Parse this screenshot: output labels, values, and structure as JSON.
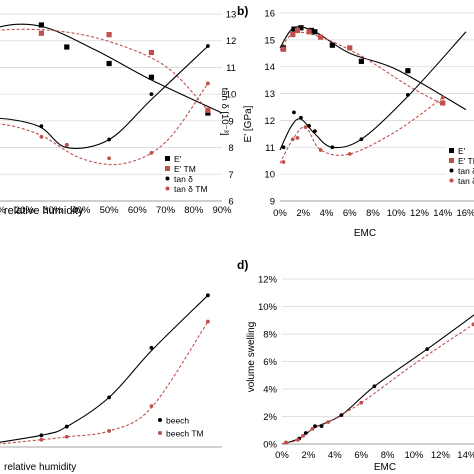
{
  "chart_data": [
    {
      "type": "scatter",
      "panel_label": "",
      "xlabel": "relative humidity",
      "ylabel": "",
      "y2label": "tan δ [10⁻³]",
      "x_ticks": [
        "0%",
        "10%",
        "20%",
        "30%",
        "40%",
        "50%",
        "60%",
        "70%",
        "80%",
        "90%"
      ],
      "y2_ticks": [
        "13",
        "12",
        "11",
        "10",
        "9",
        "8",
        "7",
        "6"
      ],
      "xlim": [
        0,
        0.9
      ],
      "ylim": [
        7,
        13.8
      ],
      "y2lim": [
        6,
        13
      ],
      "legend": [
        "E'",
        "E' TM",
        "tan δ",
        "tan δ TM"
      ],
      "legend_position": "right",
      "series": [
        {
          "name": "E'",
          "axis": "left",
          "marker": "square",
          "color": "#000000",
          "x": [
            0.26,
            0.35,
            0.5,
            0.65,
            0.85
          ],
          "y": [
            13.4,
            12.6,
            12.0,
            11.5,
            10.2
          ]
        },
        {
          "name": "E' TM",
          "axis": "left",
          "marker": "square",
          "color": "#c0504d",
          "x": [
            0.26,
            0.5,
            0.65,
            0.85
          ],
          "y": [
            13.1,
            13.05,
            12.4,
            10.3
          ]
        },
        {
          "name": "tan δ",
          "axis": "right",
          "marker": "dot",
          "color": "#000000",
          "x": [
            0.26,
            0.35,
            0.5,
            0.65,
            0.85
          ],
          "y": [
            8.8,
            8.1,
            8.3,
            10.0,
            11.8
          ]
        },
        {
          "name": "tan δ TM",
          "axis": "right",
          "marker": "dot",
          "color": "#c0504d",
          "x": [
            0.26,
            0.35,
            0.5,
            0.65,
            0.85
          ],
          "y": [
            8.4,
            8.1,
            7.6,
            7.8,
            10.4
          ]
        }
      ]
    },
    {
      "type": "scatter",
      "panel_label": "b)",
      "xlabel": "EMC",
      "ylabel": "E' [GPa]",
      "x_ticks": [
        "0%",
        "2%",
        "4%",
        "6%",
        "8%",
        "10%",
        "12%",
        "14%",
        "16%"
      ],
      "y_ticks": [
        "16",
        "15",
        "14",
        "13",
        "12",
        "11",
        "10",
        "9"
      ],
      "xlim": [
        0,
        0.16
      ],
      "ylim": [
        9,
        16
      ],
      "legend": [
        "E'",
        "E' TM",
        "tan δ",
        "tan δ TM"
      ],
      "legend_position": "bottom-right",
      "series": [
        {
          "name": "E'",
          "marker": "square",
          "color": "#000000",
          "x": [
            0.003,
            0.012,
            0.018,
            0.027,
            0.03,
            0.045,
            0.07,
            0.11
          ],
          "y": [
            14.7,
            15.4,
            15.45,
            15.35,
            15.3,
            14.8,
            14.2,
            13.85
          ]
        },
        {
          "name": "E' TM",
          "marker": "square",
          "color": "#c0504d",
          "x": [
            0.003,
            0.011,
            0.015,
            0.025,
            0.035,
            0.06,
            0.14
          ],
          "y": [
            14.65,
            15.2,
            15.35,
            15.3,
            15.1,
            14.7,
            12.65
          ]
        },
        {
          "name": "tan δ",
          "marker": "dot",
          "color": "#000000",
          "x": [
            0.003,
            0.012,
            0.018,
            0.025,
            0.03,
            0.045,
            0.07,
            0.11
          ],
          "y": [
            11.0,
            12.3,
            12.1,
            11.8,
            11.6,
            11.0,
            11.3,
            12.95
          ]
        },
        {
          "name": "tan δ TM",
          "marker": "dot",
          "color": "#c0504d",
          "x": [
            0.003,
            0.011,
            0.015,
            0.022,
            0.035,
            0.06,
            0.14
          ],
          "y": [
            10.45,
            11.3,
            11.35,
            11.75,
            10.9,
            10.75,
            12.85
          ]
        }
      ]
    },
    {
      "type": "scatter",
      "panel_label": "",
      "xlabel": "relative humidity",
      "ylabel": "",
      "xlim": [
        0,
        0.9
      ],
      "ylim": [
        0,
        0.12
      ],
      "legend": [
        "beech",
        "beech TM"
      ],
      "legend_position": "bottom-right",
      "series": [
        {
          "name": "beech",
          "marker": "dot",
          "color": "#000000",
          "x": [
            0.26,
            0.35,
            0.5,
            0.65,
            0.85
          ],
          "y": [
            0.008,
            0.014,
            0.034,
            0.068,
            0.104
          ]
        },
        {
          "name": "beech TM",
          "marker": "dot",
          "color": "#c0504d",
          "x": [
            0.26,
            0.35,
            0.5,
            0.65,
            0.85
          ],
          "y": [
            0.005,
            0.007,
            0.011,
            0.028,
            0.086
          ]
        }
      ]
    },
    {
      "type": "scatter",
      "panel_label": "d)",
      "xlabel": "EMC",
      "ylabel": "volume swelling",
      "x_ticks": [
        "0%",
        "2%",
        "4%",
        "6%",
        "8%",
        "10%",
        "12%",
        "14%"
      ],
      "y_ticks": [
        "12%",
        "10%",
        "8%",
        "6%",
        "4%",
        "2%",
        "0%"
      ],
      "xlim": [
        0,
        0.15
      ],
      "ylim": [
        0,
        0.12
      ],
      "series": [
        {
          "name": "beech",
          "marker": "dot",
          "color": "#000000",
          "x": [
            0.003,
            0.013,
            0.018,
            0.025,
            0.03,
            0.045,
            0.07,
            0.11
          ],
          "y": [
            0.001,
            0.004,
            0.008,
            0.013,
            0.013,
            0.021,
            0.042,
            0.069
          ]
        },
        {
          "name": "beech TM",
          "marker": "dot",
          "color": "#c0504d",
          "x": [
            0.003,
            0.012,
            0.016,
            0.023,
            0.035,
            0.06,
            0.145
          ],
          "y": [
            0.001,
            0.003,
            0.006,
            0.011,
            0.016,
            0.03,
            0.087
          ]
        }
      ]
    }
  ]
}
